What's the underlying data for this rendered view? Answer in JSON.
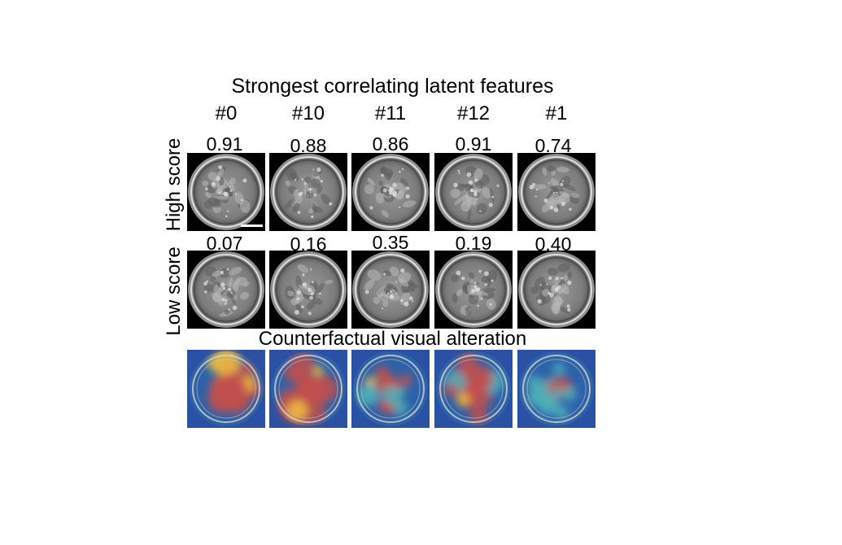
{
  "title": "Strongest correlating latent features",
  "features": [
    "#0",
    "#10",
    "#11",
    "#12",
    "#1"
  ],
  "rows": {
    "high": {
      "label": "High score",
      "scores": [
        "0.91",
        "0.88",
        "0.86",
        "0.91",
        "0.74"
      ]
    },
    "low": {
      "label": "Low score",
      "scores": [
        "0.07",
        "0.16",
        "0.35",
        "0.19",
        "0.40"
      ]
    },
    "counterfactual": {
      "label": "Counterfactual visual alteration"
    }
  },
  "heatmap_levels": [
    0.8,
    0.75,
    0.35,
    0.6,
    0.2
  ],
  "colors": {
    "heat_hot": "#c0504d",
    "heat_warm": "#f0c040",
    "heat_cold": "#2a3fa0"
  }
}
